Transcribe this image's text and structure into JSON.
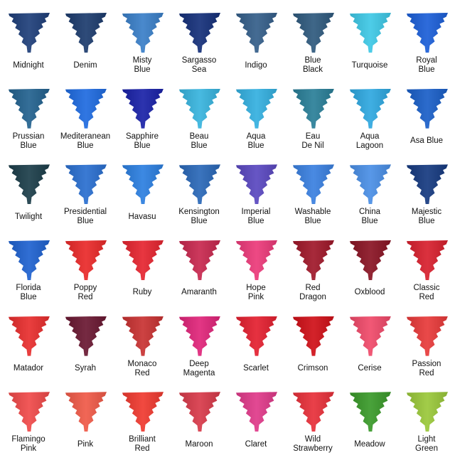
{
  "inks": [
    {
      "name": "Midnight",
      "color": "#1f3f7a"
    },
    {
      "name": "Denim",
      "color": "#1d3c6e"
    },
    {
      "name": "Misty\nBlue",
      "color": "#3a7fc8"
    },
    {
      "name": "Sargasso\nSea",
      "color": "#15307a"
    },
    {
      "name": "Indigo",
      "color": "#355f8a"
    },
    {
      "name": "Blue\nBlack",
      "color": "#2f5a7e"
    },
    {
      "name": "Turquoise",
      "color": "#3ec8e6"
    },
    {
      "name": "Royal\nBlue",
      "color": "#1c5fd8"
    },
    {
      "name": "Prussian\nBlue",
      "color": "#23628f"
    },
    {
      "name": "Mediteranean\nBlue",
      "color": "#1f6be0"
    },
    {
      "name": "Sapphire\nBlue",
      "color": "#1a22a8"
    },
    {
      "name": "Beau\nBlue",
      "color": "#38b4de"
    },
    {
      "name": "Aqua\nBlue",
      "color": "#34b0e0"
    },
    {
      "name": "Eau\nDe Nil",
      "color": "#2a7f98"
    },
    {
      "name": "Aqua\nLagoon",
      "color": "#2fa8e0"
    },
    {
      "name": "Asa Blue",
      "color": "#1a5fc8"
    },
    {
      "name": "Twilight",
      "color": "#1c3e4a"
    },
    {
      "name": "Presidential\nBlue",
      "color": "#2a6fd0"
    },
    {
      "name": "Havasu",
      "color": "#2c7fe0"
    },
    {
      "name": "Kensington\nBlue",
      "color": "#2a68b8"
    },
    {
      "name": "Imperial\nBlue",
      "color": "#5a48c0"
    },
    {
      "name": "Washable\nBlue",
      "color": "#3a80e0"
    },
    {
      "name": "China\nBlue",
      "color": "#4a8fe6"
    },
    {
      "name": "Majestic\nBlue",
      "color": "#163a80"
    },
    {
      "name": "Florida\nBlue",
      "color": "#1f62d0"
    },
    {
      "name": "Poppy\nRed",
      "color": "#ea2a2a"
    },
    {
      "name": "Ruby",
      "color": "#e62530"
    },
    {
      "name": "Amaranth",
      "color": "#c8284f"
    },
    {
      "name": "Hope\nPink",
      "color": "#ec3a7a"
    },
    {
      "name": "Red\nDragon",
      "color": "#a0182a"
    },
    {
      "name": "Oxblood",
      "color": "#8a1424"
    },
    {
      "name": "Classic\nRed",
      "color": "#d8202e"
    },
    {
      "name": "Matador",
      "color": "#e82e2e"
    },
    {
      "name": "Syrah",
      "color": "#6a1832"
    },
    {
      "name": "Monaco\nRed",
      "color": "#c83232"
    },
    {
      "name": "Deep\nMagenta",
      "color": "#e0257a"
    },
    {
      "name": "Scarlet",
      "color": "#e42030"
    },
    {
      "name": "Crimson",
      "color": "#d01018"
    },
    {
      "name": "Cerise",
      "color": "#f04a6a"
    },
    {
      "name": "Passion\nRed",
      "color": "#e83a3a"
    },
    {
      "name": "Flamingo\nPink",
      "color": "#f04a4a"
    },
    {
      "name": "Pink",
      "color": "#f05a48"
    },
    {
      "name": "Brilliant\nRed",
      "color": "#f03a30"
    },
    {
      "name": "Maroon",
      "color": "#d83a4a"
    },
    {
      "name": "Claret",
      "color": "#e03a8a"
    },
    {
      "name": "Wild\nStrawberry",
      "color": "#e8303a"
    },
    {
      "name": "Meadow",
      "color": "#3a9a2a"
    },
    {
      "name": "Light\nGreen",
      "color": "#9ac83a"
    }
  ]
}
